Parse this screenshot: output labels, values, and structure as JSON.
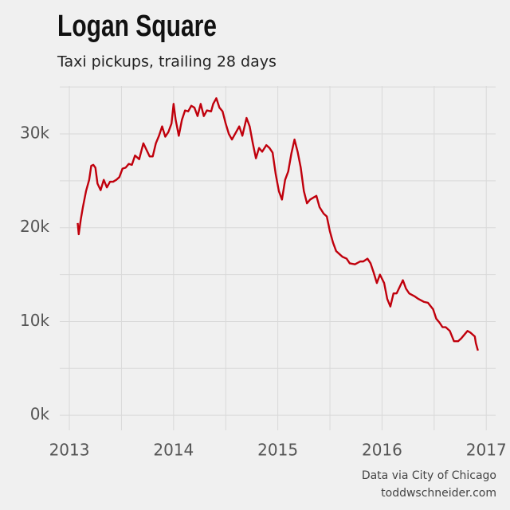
{
  "chart_data": {
    "type": "line",
    "title": "Logan Square",
    "subtitle": "Taxi pickups, trailing 28 days",
    "source": [
      "Data via City of Chicago",
      "toddwschneider.com"
    ],
    "xlim": [
      2012.908,
      2017.09
    ],
    "xticks": [
      2013,
      2014,
      2015,
      2016,
      2017
    ],
    "ylim": [
      -1600,
      35100
    ],
    "yticks": [
      {
        "value": 0,
        "label": "0k"
      },
      {
        "value": 10000,
        "label": "10k"
      },
      {
        "value": 20000,
        "label": "20k"
      },
      {
        "value": 30000,
        "label": "30k"
      }
    ],
    "grid": true,
    "series": [
      {
        "color": "#c0000c",
        "x": [
          2013.08,
          2013.09,
          2013.11,
          2013.13,
          2013.16,
          2013.19,
          2013.21,
          2013.23,
          2013.25,
          2013.27,
          2013.3,
          2013.33,
          2013.36,
          2013.39,
          2013.42,
          2013.45,
          2013.48,
          2013.51,
          2013.54,
          2013.57,
          2013.6,
          2013.63,
          2013.67,
          2013.71,
          2013.74,
          2013.77,
          2013.8,
          2013.83,
          2013.86,
          2013.89,
          2013.92,
          2013.95,
          2013.98,
          2014.0,
          2014.02,
          2014.05,
          2014.08,
          2014.11,
          2014.14,
          2014.17,
          2014.2,
          2014.23,
          2014.26,
          2014.29,
          2014.32,
          2014.36,
          2014.38,
          2014.41,
          2014.44,
          2014.47,
          2014.5,
          2014.53,
          2014.56,
          2014.6,
          2014.63,
          2014.66,
          2014.7,
          2014.73,
          2014.76,
          2014.79,
          2014.82,
          2014.85,
          2014.89,
          2014.92,
          2014.95,
          2014.98,
          2015.01,
          2015.04,
          2015.07,
          2015.1,
          2015.13,
          2015.16,
          2015.19,
          2015.22,
          2015.25,
          2015.28,
          2015.31,
          2015.34,
          2015.37,
          2015.4,
          2015.44,
          2015.47,
          2015.5,
          2015.53,
          2015.56,
          2015.59,
          2015.62,
          2015.66,
          2015.69,
          2015.74,
          2015.79,
          2015.82,
          2015.86,
          2015.89,
          2015.92,
          2015.95,
          2015.98,
          2016.02,
          2016.05,
          2016.08,
          2016.11,
          2016.14,
          2016.17,
          2016.2,
          2016.23,
          2016.26,
          2016.31,
          2016.35,
          2016.4,
          2016.44,
          2016.49,
          2016.52,
          2016.55,
          2016.58,
          2016.61,
          2016.65,
          2016.69,
          2016.73,
          2016.76,
          2016.79,
          2016.82,
          2016.85,
          2016.89,
          2016.9,
          2016.92
        ],
        "values": [
          20500,
          19300,
          20900,
          22200,
          23900,
          25100,
          26600,
          26700,
          26400,
          24700,
          24000,
          25100,
          24300,
          24900,
          24900,
          25100,
          25400,
          26300,
          26400,
          26800,
          26700,
          27700,
          27300,
          29000,
          28300,
          27600,
          27600,
          29000,
          29800,
          30800,
          29700,
          30200,
          31100,
          33200,
          31500,
          29800,
          31500,
          32500,
          32400,
          33000,
          32800,
          31900,
          33200,
          31900,
          32500,
          32400,
          33200,
          33800,
          32800,
          32400,
          31100,
          30000,
          29400,
          30200,
          30800,
          29800,
          31700,
          30800,
          29000,
          27400,
          28500,
          28100,
          28800,
          28500,
          28000,
          25700,
          23900,
          23000,
          25100,
          26000,
          27900,
          29400,
          28100,
          26400,
          23900,
          22600,
          23000,
          23200,
          23400,
          22200,
          21500,
          21200,
          19600,
          18400,
          17500,
          17200,
          16900,
          16700,
          16200,
          16100,
          16400,
          16400,
          16700,
          16200,
          15200,
          14100,
          15000,
          14100,
          12400,
          11600,
          13000,
          13000,
          13700,
          14400,
          13500,
          13000,
          12700,
          12400,
          12100,
          12000,
          11300,
          10300,
          9900,
          9400,
          9400,
          9000,
          7900,
          7900,
          8200,
          8600,
          9000,
          8800,
          8400,
          7700,
          6900
        ]
      }
    ]
  }
}
